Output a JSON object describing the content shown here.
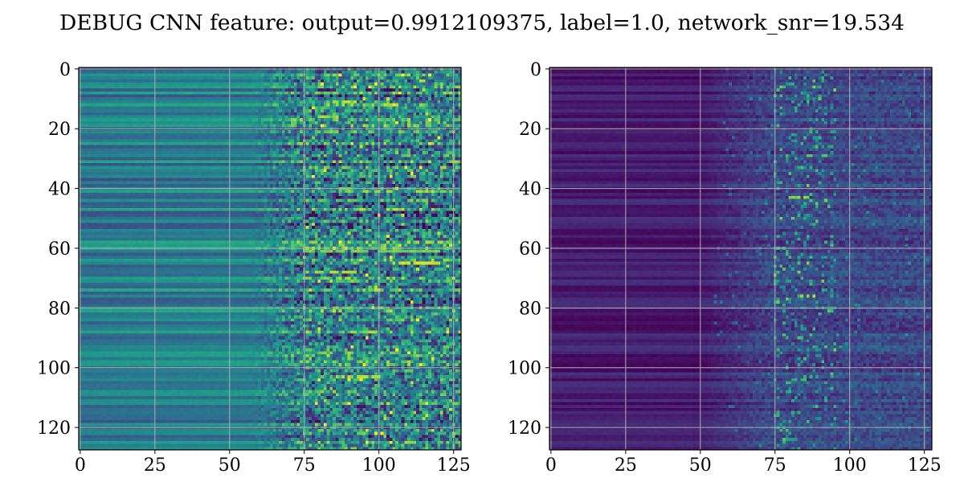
{
  "title": "DEBUG CNN feature: output=0.9912109375, label=1.0, network_snr=19.534",
  "chart_data": [
    {
      "type": "heatmap",
      "colormap": "viridis",
      "rows": 128,
      "cols": 128,
      "xlim": [
        0,
        127
      ],
      "ylim": [
        127,
        0
      ],
      "x_ticks": [
        0,
        25,
        50,
        75,
        100,
        125
      ],
      "y_ticks": [
        0,
        20,
        40,
        60,
        80,
        100,
        120
      ],
      "grid": true,
      "structure": "horizontal banding; smooth mid-level values for columns 0-55, noisy higher values for columns 55-127",
      "highlights": [
        {
          "row": 11,
          "col_start": 84,
          "col_end": 90,
          "value": 0.95
        },
        {
          "row": 16,
          "col_start": 80,
          "col_end": 86,
          "value": 0.9
        },
        {
          "row": 61,
          "col_start": 75,
          "col_end": 120,
          "value": 0.85
        },
        {
          "row": 65,
          "col_start": 105,
          "col_end": 120,
          "value": 0.98
        },
        {
          "row": 68,
          "col_start": 76,
          "col_end": 92,
          "value": 0.9
        },
        {
          "row": 103,
          "col_start": 85,
          "col_end": 100,
          "value": 0.95
        }
      ]
    },
    {
      "type": "heatmap",
      "colormap": "viridis",
      "rows": 128,
      "cols": 128,
      "xlim": [
        0,
        127
      ],
      "ylim": [
        127,
        0
      ],
      "x_ticks": [
        0,
        25,
        50,
        75,
        100,
        125
      ],
      "y_ticks": [
        0,
        20,
        40,
        60,
        80,
        100,
        120
      ],
      "grid": true,
      "structure": "mostly low (dark purple) values; bright activations concentrated around columns 75-95",
      "highlights": [
        {
          "row": 29,
          "col_start": 85,
          "col_end": 92,
          "value": 0.8
        },
        {
          "row": 43,
          "col_start": 80,
          "col_end": 86,
          "value": 0.85
        },
        {
          "row": 76,
          "col_start": 84,
          "col_end": 88,
          "value": 0.9
        },
        {
          "row": 104,
          "col_start": 82,
          "col_end": 86,
          "value": 0.7
        },
        {
          "row": 124,
          "col_start": 78,
          "col_end": 84,
          "value": 0.65
        }
      ]
    }
  ]
}
